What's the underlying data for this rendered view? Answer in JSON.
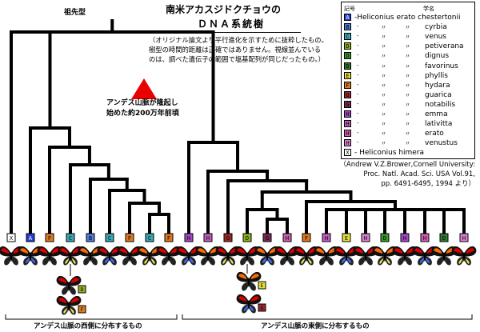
{
  "title_line1": "南米アカスジドクチョウの",
  "title_line2": "ＤＮＡ系統樹",
  "note_lines": [
    "（オリジナル論文より平行進化を示すために抜粋したもの。",
    "樹型の時間的距離は正確ではありません。視線並んでいる",
    "のは、調べた遺伝子の範囲で塩基配列が同じだったもの。）"
  ],
  "ancestor_label": "祖先型",
  "uplift_label": [
    "アンデス山脈が隆起し",
    "始めた約200万年前頃"
  ],
  "citation_lines": [
    "（Andrew V.Z.Brower,Cornell University:",
    "Proc. Natl. Acad. Sci. USA Vol.91,",
    "pp. 6491-6495, 1994 より）"
  ],
  "region_west": "アンデス山脈の西側に分布するもの",
  "region_east": "アンデス山脈の東側に分布するもの",
  "legend": {
    "head_code": "記号",
    "head_name": "学名",
    "ditto": "〃",
    "rows": [
      {
        "code": "A",
        "name": "Heliconius erato chestertonii",
        "color": "#2a3fd6",
        "code_color": "#ffffff"
      },
      {
        "code": "B",
        "name": "cyrbia",
        "color": "#4f7fe0",
        "code_color": "#000000"
      },
      {
        "code": "C",
        "name": "venus",
        "color": "#39a7b4",
        "code_color": "#000000"
      },
      {
        "code": "D",
        "name": "petiverana",
        "color": "#8fb31e",
        "code_color": "#000000"
      },
      {
        "code": "D",
        "name": "dignus",
        "color": "#3c9a2a",
        "code_color": "#000000"
      },
      {
        "code": "D",
        "name": "favorinus",
        "color": "#2f7d33",
        "code_color": "#000000"
      },
      {
        "code": "E",
        "name": "phyllis",
        "color": "#e6e03a",
        "code_color": "#000000"
      },
      {
        "code": "F",
        "name": "hydara",
        "color": "#e07a1e",
        "code_color": "#000000"
      },
      {
        "code": "G",
        "name": "guarica",
        "color": "#9b2a2a",
        "code_color": "#000000"
      },
      {
        "code": "G",
        "name": "notabilis",
        "color": "#7a2a55",
        "code_color": "#000000"
      },
      {
        "code": "H",
        "name": "emma",
        "color": "#a64ac8",
        "code_color": "#000000"
      },
      {
        "code": "H",
        "name": "lativitta",
        "color": "#c35ec2",
        "code_color": "#000000"
      },
      {
        "code": "H",
        "name": "erato",
        "color": "#d060b0",
        "code_color": "#000000"
      },
      {
        "code": "H",
        "name": "venustus",
        "color": "#d882d0",
        "code_color": "#000000"
      },
      {
        "code": "X",
        "name": "Heliconius himera",
        "color": "#ffffff",
        "code_color": "#000000"
      }
    ]
  },
  "tips": [
    {
      "code": "X",
      "color": "#ffffff"
    },
    {
      "code": "A",
      "color": "#2a3fd6"
    },
    {
      "code": "F",
      "color": "#e07a1e"
    },
    {
      "code": "C",
      "color": "#39a7b4"
    },
    {
      "code": "B",
      "color": "#4f7fe0"
    },
    {
      "code": "C",
      "color": "#39a7b4"
    },
    {
      "code": "F",
      "color": "#e07a1e"
    },
    {
      "code": "C",
      "color": "#39a7b4"
    },
    {
      "code": "F",
      "color": "#e07a1e"
    },
    {
      "code": "H",
      "color": "#a64ac8"
    },
    {
      "code": "H",
      "color": "#c35ec2"
    },
    {
      "code": "G",
      "color": "#9b2a2a"
    },
    {
      "code": "D",
      "color": "#8fb31e"
    },
    {
      "code": "G",
      "color": "#7a2a55"
    },
    {
      "code": "H",
      "color": "#d060b0"
    },
    {
      "code": "F",
      "color": "#e07a1e"
    },
    {
      "code": "H",
      "color": "#c35ec2"
    },
    {
      "code": "E",
      "color": "#e6e03a"
    },
    {
      "code": "H",
      "color": "#d882d0"
    },
    {
      "code": "D",
      "color": "#3c9a2a"
    },
    {
      "code": "H",
      "color": "#a64ac8"
    },
    {
      "code": "H",
      "color": "#d060b0"
    },
    {
      "code": "D",
      "color": "#2f7d33"
    },
    {
      "code": "H",
      "color": "#d882d0"
    }
  ],
  "extra_specimens": [
    {
      "code": "D",
      "color": "#8fb31e"
    },
    {
      "code": "F",
      "color": "#e07a1e"
    },
    {
      "code": "E",
      "color": "#e6e03a"
    },
    {
      "code": "G",
      "color": "#9b2a2a"
    }
  ],
  "uplift_marker_color": "#e60000"
}
